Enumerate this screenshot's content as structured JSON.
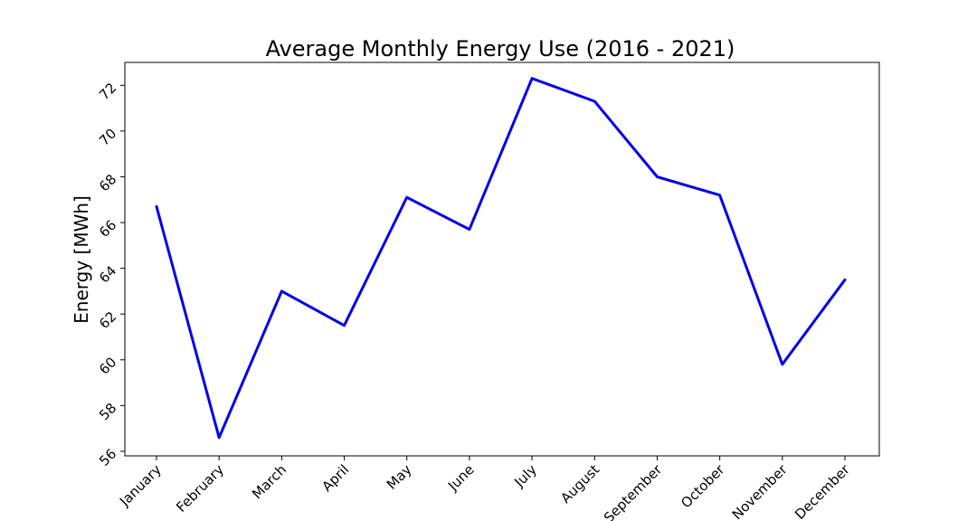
{
  "chart_data": {
    "type": "line",
    "title": "Average Monthly Energy Use (2016 - 2021)",
    "xlabel": "",
    "ylabel": "Energy [MWh]",
    "categories": [
      "January",
      "February",
      "March",
      "April",
      "May",
      "June",
      "July",
      "August",
      "September",
      "October",
      "November",
      "December"
    ],
    "series": [
      {
        "values": [
          66.7,
          56.6,
          63.0,
          61.5,
          67.1,
          65.7,
          72.3,
          71.3,
          68.0,
          67.2,
          59.8,
          63.5
        ],
        "color": "#0000ee"
      }
    ],
    "yticks": [
      56,
      58,
      60,
      62,
      64,
      66,
      68,
      70,
      72
    ],
    "ylim": [
      55.8,
      73.0
    ],
    "grid": false,
    "legend": "none"
  }
}
